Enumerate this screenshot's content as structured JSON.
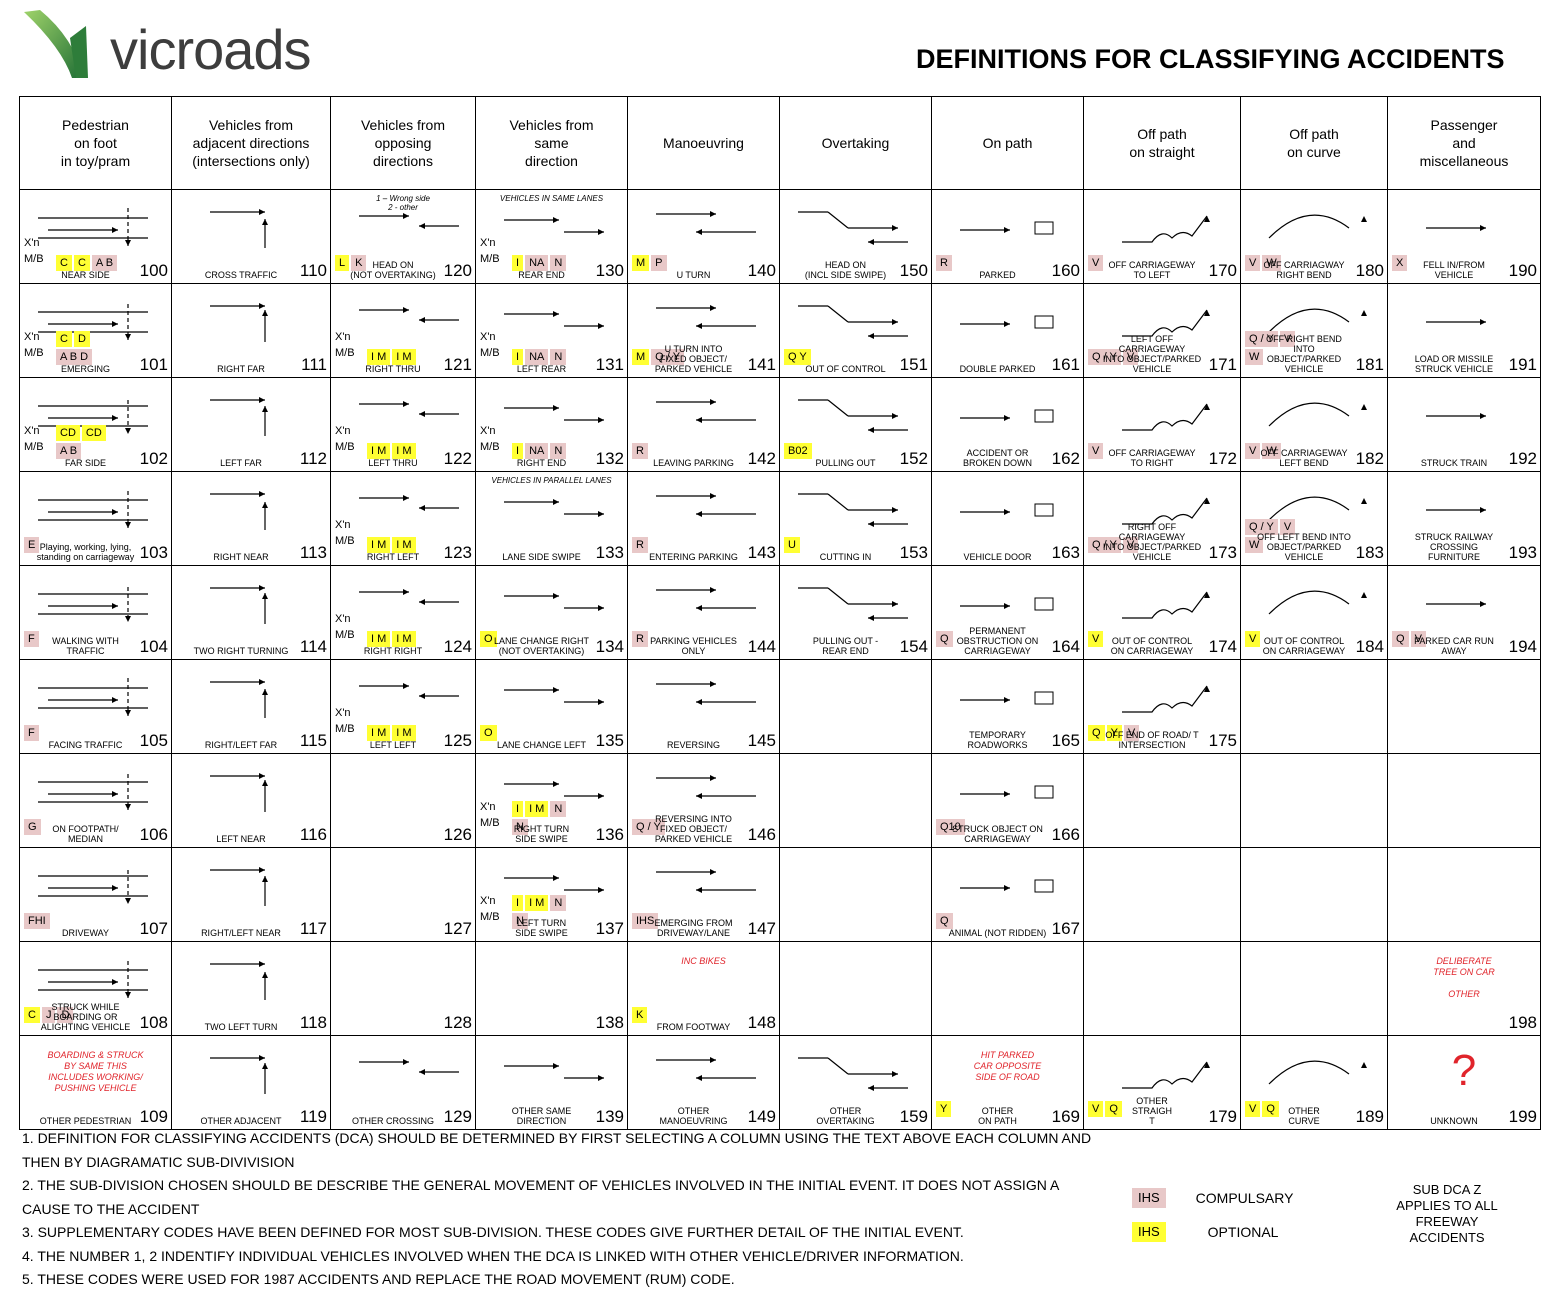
{
  "header": {
    "logo_text": "vicroads",
    "title": "DEFINITIONS FOR CLASSIFYING ACCIDENTS"
  },
  "columns": [
    "Pedestrian\non foot\nin toy/pram",
    "Vehicles from\nadjacent directions\n(intersections only)",
    "Vehicles from\nopposing\ndirections",
    "Vehicles from\nsame\ndirection",
    "Manoeuvring",
    "Overtaking",
    "On path",
    "Off path\non straight",
    "Off path\non curve",
    "Passenger\nand\nmiscellaneous"
  ],
  "rows": [
    [
      {
        "code": "100",
        "label": "NEAR SIDE",
        "comp": [
          "A B"
        ],
        "opt": [
          "C",
          "C"
        ],
        "xn": true
      },
      {
        "code": "110",
        "label": "CROSS TRAFFIC"
      },
      {
        "code": "120",
        "label": "HEAD ON\n(NOT OVERTAKING)",
        "comp": [
          "K"
        ],
        "opt": [
          "L"
        ],
        "small": "1 – Wrong side\n2 - other"
      },
      {
        "code": "130",
        "label": "REAR END",
        "comp": [
          "NA",
          "N"
        ],
        "opt": [
          "I"
        ],
        "xn": true,
        "small": "VEHICLES IN SAME LANES"
      },
      {
        "code": "140",
        "label": "U TURN",
        "comp": [
          "P"
        ],
        "opt": [
          "M"
        ]
      },
      {
        "code": "150",
        "label": "HEAD ON\n(INCL SIDE SWIPE)"
      },
      {
        "code": "160",
        "label": "PARKED",
        "comp": [
          "R"
        ]
      },
      {
        "code": "170",
        "label": "OFF CARRIAGEWAY\nTO LEFT",
        "comp": [
          "V"
        ]
      },
      {
        "code": "180",
        "label": "OFF CARRIAGWAY\nRIGHT BEND",
        "comp": [
          "V",
          "W"
        ]
      },
      {
        "code": "190",
        "label": "FELL IN/FROM\nVEHICLE",
        "comp": [
          "X"
        ]
      }
    ],
    [
      {
        "code": "101",
        "label": "EMERGING",
        "comp": [
          "A B D"
        ],
        "opt": [
          "C",
          "D"
        ],
        "xn": true
      },
      {
        "code": "111",
        "label": "RIGHT FAR"
      },
      {
        "code": "121",
        "label": "RIGHT THRU",
        "opt": [
          "I M",
          "I M"
        ],
        "xn": true
      },
      {
        "code": "131",
        "label": "LEFT REAR",
        "comp": [
          "NA",
          "N"
        ],
        "opt": [
          "I"
        ],
        "xn": true
      },
      {
        "code": "141",
        "label": "U TURN INTO\nFIXED OBJECT/\nPARKED VEHICLE",
        "comp": [
          "Q / Y"
        ],
        "opt": [
          "M"
        ]
      },
      {
        "code": "151",
        "label": "OUT OF CONTROL",
        "opt": [
          "Q Y"
        ]
      },
      {
        "code": "161",
        "label": "DOUBLE PARKED"
      },
      {
        "code": "171",
        "label": "LEFT OFF CARRIAGEWAY\nINTO OBJECT/PARKED\nVEHICLE",
        "comp": [
          "Q / Y",
          "V"
        ]
      },
      {
        "code": "181",
        "label": "OFF RIGHT BEND INTO\nOBJECT/PARKED\nVEHICLE",
        "comp": [
          "Q / Y",
          "V",
          "W"
        ]
      },
      {
        "code": "191",
        "label": "LOAD OR MISSILE\nSTRUCK VEHICLE"
      }
    ],
    [
      {
        "code": "102",
        "label": "FAR SIDE",
        "comp": [
          "A B"
        ],
        "opt": [
          "CD",
          "CD"
        ],
        "xn": true
      },
      {
        "code": "112",
        "label": "LEFT FAR"
      },
      {
        "code": "122",
        "label": "LEFT THRU",
        "opt": [
          "I M",
          "I M"
        ],
        "xn": true
      },
      {
        "code": "132",
        "label": "RIGHT END",
        "comp": [
          "NA",
          "N"
        ],
        "opt": [
          "I"
        ],
        "xn": true
      },
      {
        "code": "142",
        "label": "LEAVING PARKING",
        "comp": [
          "R"
        ]
      },
      {
        "code": "152",
        "label": "PULLING OUT",
        "opt": [
          "B02"
        ]
      },
      {
        "code": "162",
        "label": "ACCIDENT OR\nBROKEN DOWN"
      },
      {
        "code": "172",
        "label": "OFF CARRIAGEWAY\nTO RIGHT",
        "comp": [
          "V"
        ]
      },
      {
        "code": "182",
        "label": "OFF CARRIAGEWAY\nLEFT BEND",
        "comp": [
          "V",
          "W"
        ]
      },
      {
        "code": "192",
        "label": "STRUCK TRAIN"
      }
    ],
    [
      {
        "code": "103",
        "label": "Playing, working, lying,\nstanding on carriageway",
        "comp": [
          "E"
        ]
      },
      {
        "code": "113",
        "label": "RIGHT NEAR"
      },
      {
        "code": "123",
        "label": "RIGHT LEFT",
        "opt": [
          "I M",
          "I M"
        ],
        "xn": true
      },
      {
        "code": "133",
        "label": "LANE SIDE SWIPE",
        "small": "VEHICLES IN PARALLEL LANES"
      },
      {
        "code": "143",
        "label": "ENTERING PARKING",
        "comp": [
          "R"
        ]
      },
      {
        "code": "153",
        "label": "CUTTING IN",
        "opt": [
          "U"
        ]
      },
      {
        "code": "163",
        "label": "VEHICLE DOOR"
      },
      {
        "code": "173",
        "label": "RIGHT OFF CARRIAGEWAY\nINTO OBJECT/PARKED\nVEHICLE",
        "comp": [
          "Q / Y",
          "V"
        ]
      },
      {
        "code": "183",
        "label": "OFF LEFT BEND INTO\nOBJECT/PARKED\nVEHICLE",
        "comp": [
          "Q / Y",
          "V",
          "W"
        ]
      },
      {
        "code": "193",
        "label": "STRUCK RAILWAY\nCROSSING\nFURNITURE"
      }
    ],
    [
      {
        "code": "104",
        "label": "WALKING WITH\nTRAFFIC",
        "comp": [
          "F"
        ]
      },
      {
        "code": "114",
        "label": "TWO RIGHT TURNING"
      },
      {
        "code": "124",
        "label": "RIGHT RIGHT",
        "opt": [
          "I M",
          "I M"
        ],
        "xn": true
      },
      {
        "code": "134",
        "label": "LANE CHANGE RIGHT\n(NOT OVERTAKING)",
        "opt": [
          "O"
        ]
      },
      {
        "code": "144",
        "label": "PARKING VEHICLES\nONLY",
        "comp": [
          "R"
        ]
      },
      {
        "code": "154",
        "label": "PULLING OUT -\nREAR END"
      },
      {
        "code": "164",
        "label": "PERMANENT\nOBSTRUCTION ON\nCARRIAGEWAY",
        "comp": [
          "Q"
        ]
      },
      {
        "code": "174",
        "label": "OUT OF CONTROL\nON CARRIAGEWAY",
        "opt": [
          "V"
        ]
      },
      {
        "code": "184",
        "label": "OUT OF CONTROL\nON CARRIAGEWAY",
        "opt": [
          "V"
        ]
      },
      {
        "code": "194",
        "label": "PARKED CAR RUN\nAWAY",
        "comp": [
          "Q",
          "V"
        ]
      }
    ],
    [
      {
        "code": "105",
        "label": "FACING TRAFFIC",
        "comp": [
          "F"
        ]
      },
      {
        "code": "115",
        "label": "RIGHT/LEFT FAR"
      },
      {
        "code": "125",
        "label": "LEFT LEFT",
        "opt": [
          "I M",
          "I M"
        ],
        "xn": true
      },
      {
        "code": "135",
        "label": "LANE CHANGE LEFT",
        "opt": [
          "O"
        ]
      },
      {
        "code": "145",
        "label": "REVERSING"
      },
      {
        "code": "",
        "label": ""
      },
      {
        "code": "165",
        "label": "TEMPORARY\nROADWORKS"
      },
      {
        "code": "175",
        "label": "OFF END OF ROAD/ T\nINTERSECTION",
        "comp": [
          "V"
        ],
        "opt": [
          "Q",
          "Y"
        ]
      },
      {
        "code": "",
        "label": ""
      },
      {
        "code": "",
        "label": ""
      }
    ],
    [
      {
        "code": "106",
        "label": "ON FOOTPATH/\nMEDIAN",
        "comp": [
          "G"
        ]
      },
      {
        "code": "116",
        "label": "LEFT NEAR"
      },
      {
        "code": "126",
        "label": ""
      },
      {
        "code": "136",
        "label": "RIGHT TURN\nSIDE SWIPE",
        "comp": [
          "N",
          "N"
        ],
        "opt": [
          "I",
          "I M"
        ],
        "xn": true
      },
      {
        "code": "146",
        "label": "REVERSING INTO\nFIXED OBJECT/\nPARKED VEHICLE",
        "comp": [
          "Q / Y"
        ]
      },
      {
        "code": "",
        "label": ""
      },
      {
        "code": "166",
        "label": "STRUCK OBJECT ON\nCARRIAGEWAY",
        "comp": [
          "Q10"
        ]
      },
      {
        "code": "",
        "label": ""
      },
      {
        "code": "",
        "label": ""
      },
      {
        "code": "",
        "label": ""
      }
    ],
    [
      {
        "code": "107",
        "label": "DRIVEWAY",
        "comp": [
          "FHI"
        ]
      },
      {
        "code": "117",
        "label": "RIGHT/LEFT NEAR"
      },
      {
        "code": "127",
        "label": ""
      },
      {
        "code": "137",
        "label": "LEFT TURN\nSIDE SWIPE",
        "comp": [
          "N",
          "N"
        ],
        "opt": [
          "I",
          "I M"
        ],
        "xn": true
      },
      {
        "code": "147",
        "label": "EMERGING FROM\nDRIVEWAY/LANE",
        "comp": [
          "IHS"
        ]
      },
      {
        "code": "",
        "label": ""
      },
      {
        "code": "167",
        "label": "ANIMAL (NOT RIDDEN)",
        "comp": [
          "Q"
        ]
      },
      {
        "code": "",
        "label": ""
      },
      {
        "code": "",
        "label": ""
      },
      {
        "code": "",
        "label": ""
      }
    ],
    [
      {
        "code": "108",
        "label": "STRUCK WHILE\nBOARDING OR\nALIGHTING VEHICLE",
        "comp": [
          "J",
          "D"
        ],
        "opt": [
          "C"
        ]
      },
      {
        "code": "118",
        "label": "TWO LEFT TURN"
      },
      {
        "code": "128",
        "label": ""
      },
      {
        "code": "138",
        "label": ""
      },
      {
        "code": "148",
        "label": "FROM FOOTWAY",
        "opt": [
          "K"
        ],
        "red": "INC BIKES"
      },
      {
        "code": "",
        "label": ""
      },
      {
        "code": "",
        "label": ""
      },
      {
        "code": "",
        "label": ""
      },
      {
        "code": "",
        "label": ""
      },
      {
        "code": "198",
        "label": "",
        "red": "DELIBERATE\nTREE ON CAR\n\nOTHER"
      }
    ],
    [
      {
        "code": "109",
        "label": "OTHER PEDESTRIAN",
        "red": "BOARDING & STRUCK\nBY SAME THIS\nINCLUDES WORKING/\nPUSHING VEHICLE"
      },
      {
        "code": "119",
        "label": "OTHER ADJACENT"
      },
      {
        "code": "129",
        "label": "OTHER CROSSING"
      },
      {
        "code": "139",
        "label": "OTHER SAME\nDIRECTION"
      },
      {
        "code": "149",
        "label": "OTHER\nMANOEUVRING"
      },
      {
        "code": "159",
        "label": "OTHER\nOVERTAKING"
      },
      {
        "code": "169",
        "label": "OTHER\nON PATH",
        "opt": [
          "Y"
        ],
        "red": "HIT PARKED\nCAR OPPOSITE\nSIDE OF ROAD"
      },
      {
        "code": "179",
        "label": "OTHER\nSTRAIGH\nT",
        "opt": [
          "V",
          "Q"
        ]
      },
      {
        "code": "189",
        "label": "OTHER\nCURVE",
        "opt": [
          "V",
          "Q"
        ]
      },
      {
        "code": "199",
        "label": "UNKNOWN",
        "question": "?"
      }
    ]
  ],
  "xn_label": "X'n",
  "mb_label": "M/B",
  "notes": [
    "1. DEFINITION FOR CLASSIFYING ACCIDENTS (DCA) SHOULD BE DETERMINED BY FIRST SELECTING A COLUMN USING THE TEXT ABOVE EACH COLUMN AND THEN BY DIAGRAMATIC SUB-DIVIVISION",
    "2. THE SUB-DIVISION CHOSEN SHOULD BE DESCRIBE THE GENERAL MOVEMENT OF VEHICLES INVOLVED IN THE INITIAL EVENT. IT DOES NOT ASSIGN A CAUSE TO THE ACCIDENT",
    "3. SUPPLEMENTARY CODES HAVE BEEN DEFINED FOR MOST SUB-DIVISION. THESE CODES GIVE FURTHER DETAIL OF THE INITIAL EVENT.",
    "4. THE NUMBER 1, 2 INDENTIFY INDIVIDUAL VEHICLES INVOLVED WHEN THE DCA IS LINKED WITH OTHER VEHICLE/DRIVER INFORMATION.",
    "5. THESE CODES WERE USED FOR 1987 ACCIDENTS AND REPLACE THE ROAD MOVEMENT (RUM) CODE."
  ],
  "legend": {
    "compulsory": {
      "tag": "IHS",
      "label": "COMPULSARY",
      "color": "#e8c8c8"
    },
    "optional": {
      "tag": "IHS",
      "label": "OPTIONAL",
      "color": "#ffff33"
    }
  },
  "sub_dca_note": "SUB DCA Z\nAPPLIES TO ALL\nFREEWAY\nACCIDENTS",
  "colors": {
    "accent_red": "#e0242b",
    "logo_green": "#2e8b3e"
  }
}
